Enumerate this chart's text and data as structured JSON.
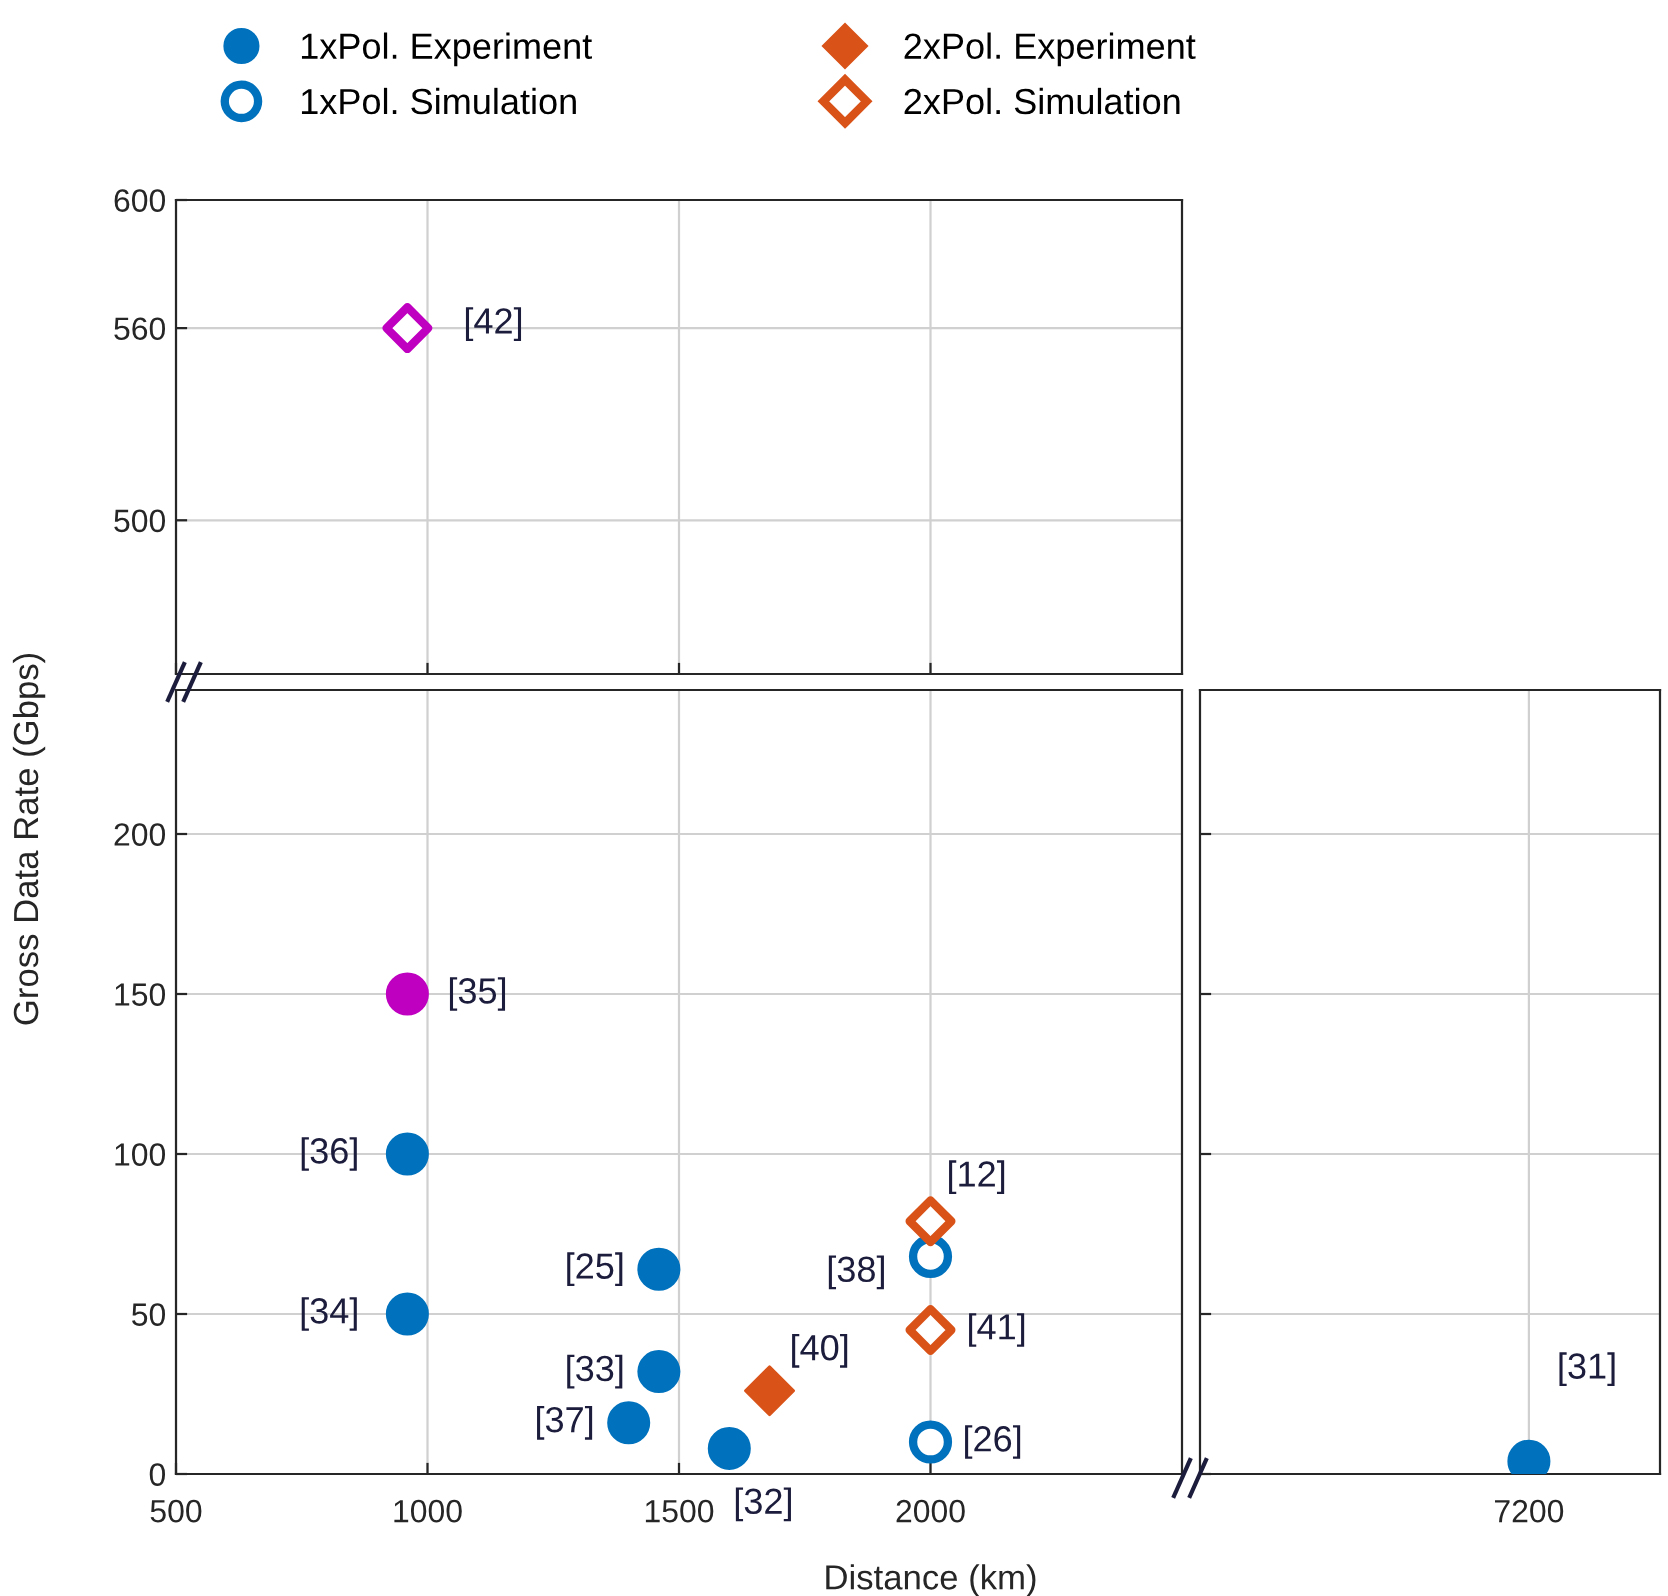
{
  "chart_data": [
    {
      "type": "scatter",
      "xlim": [
        500,
        2500
      ],
      "xticks": [
        500,
        1000,
        1500,
        2000
      ],
      "ylim": [
        452,
        600
      ],
      "yticks": [
        500,
        560,
        600
      ],
      "tick_labels": "y",
      "grid": true,
      "series": [
        {
          "type": "scatter",
          "marker": "diamond",
          "color": "#c000c0",
          "colors": [
            "#ffffff"
          ],
          "x": [
            960
          ],
          "values": [
            560
          ]
        }
      ],
      "annotations": [
        {
          "text": "[42]",
          "x": 960,
          "y": 560
        }
      ]
    },
    {
      "type": "scatter",
      "xlim": [
        500,
        2500
      ],
      "xticks": [
        500,
        1000,
        1500,
        2000
      ],
      "ylim": [
        0,
        245
      ],
      "yticks": [
        0,
        50,
        100,
        150,
        200
      ],
      "grid": true,
      "legend": "top",
      "xlabel": "Distance (km)",
      "ylabel": "Gross Data Rate (Gbps)",
      "series": [
        {
          "type": "scatter",
          "name": "1xPol. Experiment",
          "marker": "circle",
          "color": "#0072bd",
          "colors": [
            "#c000c0",
            "#0072bd",
            "#0072bd",
            "#0072bd",
            "#0072bd",
            "#0072bd",
            "#0072bd"
          ],
          "x": [
            960,
            960,
            960,
            1460,
            1460,
            1400,
            1600
          ],
          "values": [
            150,
            100,
            50,
            64,
            32,
            16,
            8
          ]
        },
        {
          "type": "scatter",
          "name": "1xPol. Simulation",
          "marker": "circle",
          "color": "#0072bd",
          "colors": [
            "#ffffff",
            "#ffffff"
          ],
          "x": [
            2000,
            2000
          ],
          "values": [
            68,
            10
          ]
        },
        {
          "type": "scatter",
          "name": "2xPol. Experiment",
          "marker": "diamond",
          "color": "#d95319",
          "x": [
            1680
          ],
          "values": [
            26
          ]
        },
        {
          "type": "scatter",
          "name": "2xPol. Simulation",
          "marker": "diamond",
          "color": "#d95319",
          "colors": [
            "#ffffff",
            "#ffffff"
          ],
          "x": [
            2000,
            2000
          ],
          "values": [
            79,
            45
          ]
        }
      ],
      "annotations": [
        {
          "text": "[35]",
          "x": 960,
          "y": 150
        },
        {
          "text": "[36]",
          "x": 960,
          "y": 100
        },
        {
          "text": "[34]",
          "x": 960,
          "y": 50
        },
        {
          "text": "[25]",
          "x": 1460,
          "y": 64
        },
        {
          "text": "[33]",
          "x": 1460,
          "y": 32
        },
        {
          "text": "[37]",
          "x": 1400,
          "y": 16
        },
        {
          "text": "[32]",
          "x": 1600,
          "y": 8
        },
        {
          "text": "[40]",
          "x": 1680,
          "y": 26
        },
        {
          "text": "[38]",
          "x": 2000,
          "y": 68
        },
        {
          "text": "[26]",
          "x": 2000,
          "y": 10
        },
        {
          "text": "[12]",
          "x": 2000,
          "y": 79
        },
        {
          "text": "[41]",
          "x": 2000,
          "y": 45
        }
      ]
    },
    {
      "type": "scatter",
      "categories": [
        "7200"
      ],
      "ylim": [
        0,
        245
      ],
      "yticks": [
        0,
        50,
        100,
        150,
        200
      ],
      "tick_labels": "x",
      "grid": true,
      "series": [
        {
          "type": "scatter",
          "marker": "circle",
          "color": "#0072bd",
          "values": [
            4
          ]
        }
      ],
      "annotations": [
        {
          "text": "[31]",
          "x": "7200",
          "y": 4
        }
      ]
    }
  ]
}
